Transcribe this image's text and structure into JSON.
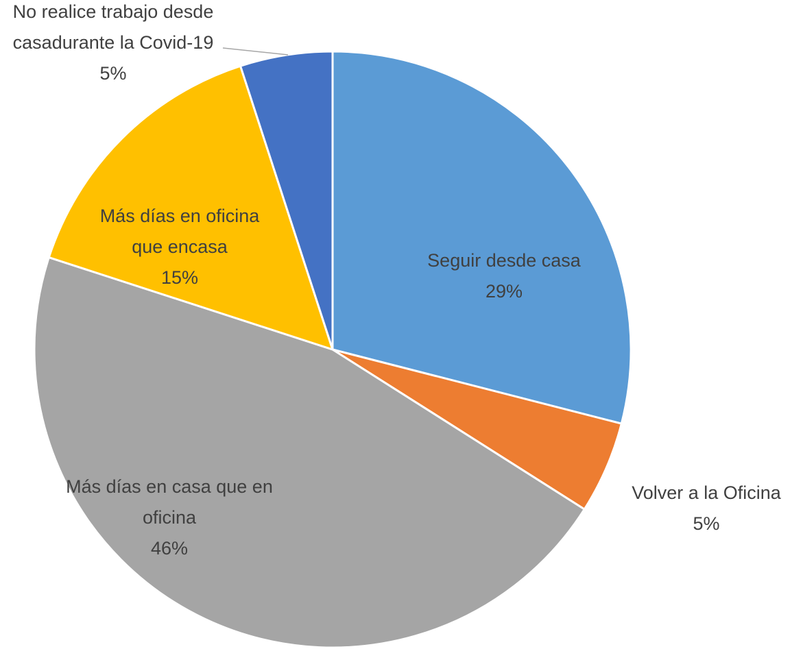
{
  "chart_data": {
    "type": "pie",
    "categories": [
      "Seguir desde casa",
      "Volver a la Oficina",
      "Más días en casa que en oficina",
      "Más días en oficina que encasa",
      "No realice trabajo desde casadurante la Covid-19"
    ],
    "values": [
      29,
      5,
      46,
      15,
      5
    ],
    "value_labels": [
      "29%",
      "5%",
      "46%",
      "15%",
      "5%"
    ],
    "colors": [
      "#5b9bd5",
      "#ed7d31",
      "#a5a5a5",
      "#ffc000",
      "#4472c4"
    ]
  }
}
